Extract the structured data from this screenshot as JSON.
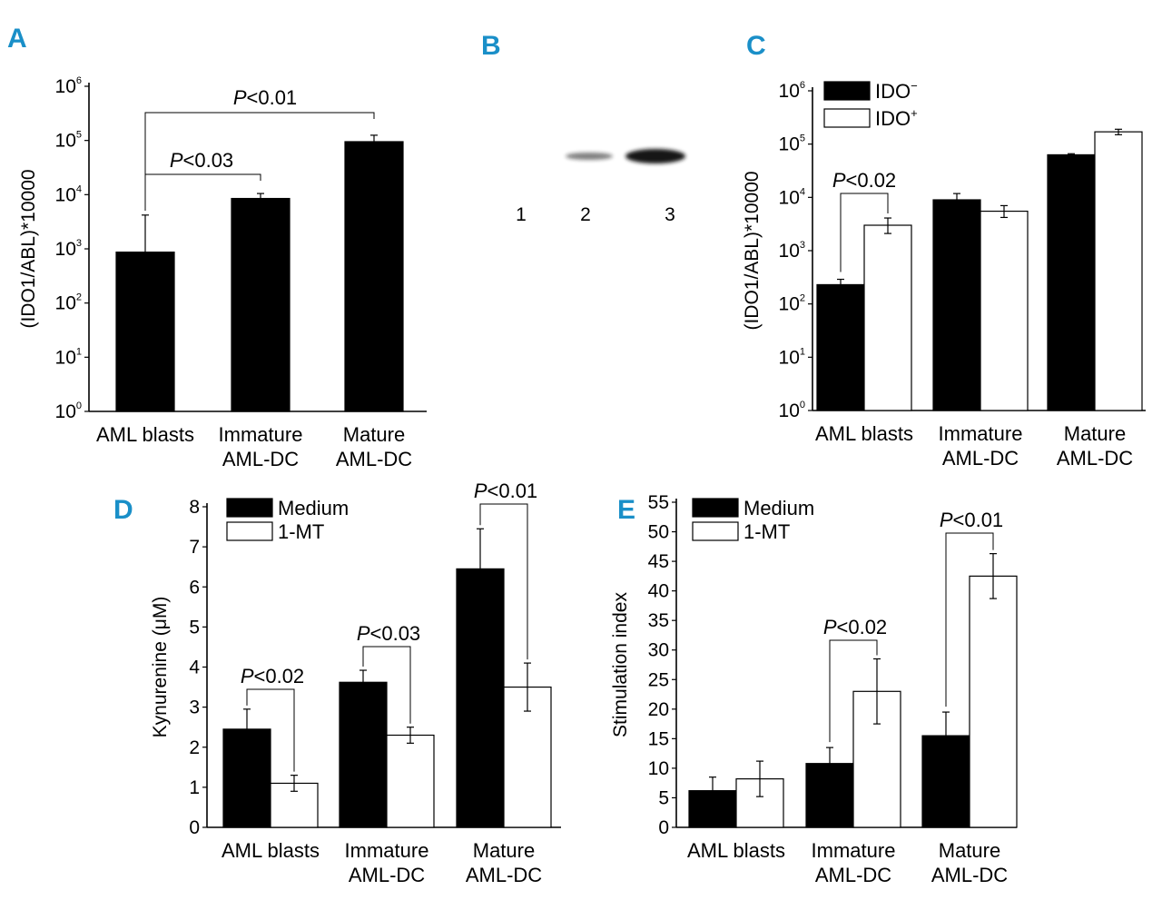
{
  "colors": {
    "panel_label": "#1a8fc8",
    "bar_filled": "#000000",
    "bar_open": "#ffffff",
    "blot_band": "#151515"
  },
  "panel_labels": {
    "a": "A",
    "b": "B",
    "c": "C",
    "d": "D",
    "e": "E"
  },
  "chart_data": [
    {
      "panel": "A",
      "type": "bar",
      "scale": "log",
      "ylabel": "(IDO1/ABL)*10000",
      "ylim": [
        1,
        1000000
      ],
      "ytick_base": "10",
      "yticks_exponents": [
        "0",
        "1",
        "2",
        "3",
        "4",
        "5",
        "6"
      ],
      "categories": [
        [
          "AML blasts"
        ],
        [
          "Immature",
          "AML-DC"
        ],
        [
          "Mature",
          "AML-DC"
        ]
      ],
      "series": [
        {
          "name": "",
          "style": "filled",
          "values": [
            870,
            8500,
            95000
          ],
          "errors_high": [
            4200,
            10500,
            125000
          ]
        }
      ],
      "annotations": [
        {
          "text": "P<0.03",
          "p": "P",
          "rest": "<0.03",
          "from": 0,
          "to": 1
        },
        {
          "text": "P<0.01",
          "p": "P",
          "rest": "<0.01",
          "from": 0,
          "to": 2
        }
      ]
    },
    {
      "panel": "B",
      "type": "blot",
      "lanes": [
        "1",
        "2",
        "3"
      ],
      "band_intensity": [
        0.0,
        0.55,
        1.0
      ]
    },
    {
      "panel": "C",
      "type": "bar",
      "scale": "log",
      "ylabel": "(IDO1/ABL)*10000",
      "ylim": [
        1,
        1000000
      ],
      "ytick_base": "10",
      "yticks_exponents": [
        "0",
        "1",
        "2",
        "3",
        "4",
        "5",
        "6"
      ],
      "categories": [
        [
          "AML blasts"
        ],
        [
          "Immature",
          "AML-DC"
        ],
        [
          "Mature",
          "AML-DC"
        ]
      ],
      "series": [
        {
          "name": "IDO",
          "sup": "−",
          "style": "filled",
          "values": [
            230,
            9000,
            63000
          ],
          "errors_low": [
            190,
            7600,
            60000
          ],
          "errors_high": [
            290,
            11800,
            66000
          ]
        },
        {
          "name": "IDO",
          "sup": "+",
          "style": "open",
          "values": [
            3000,
            5500,
            170000
          ],
          "errors_low": [
            2100,
            4200,
            150000
          ],
          "errors_high": [
            4100,
            7000,
            190000
          ]
        }
      ],
      "annotations": [
        {
          "text": "P<0.02",
          "p": "P",
          "rest": "<0.02",
          "category": 0
        }
      ]
    },
    {
      "panel": "D",
      "type": "bar",
      "scale": "linear",
      "ylabel": "Kynurenine (μM)",
      "ylim": [
        0,
        8
      ],
      "yticks": [
        "0",
        "1",
        "2",
        "3",
        "4",
        "5",
        "6",
        "7",
        "8"
      ],
      "categories": [
        [
          "AML blasts"
        ],
        [
          "Immature",
          "AML-DC"
        ],
        [
          "Mature",
          "AML-DC"
        ]
      ],
      "series": [
        {
          "name": "Medium",
          "style": "filled",
          "values": [
            2.45,
            3.62,
            6.45
          ],
          "errors": [
            0.5,
            0.3,
            1.0
          ]
        },
        {
          "name": "1-MT",
          "style": "open",
          "values": [
            1.1,
            2.3,
            3.5
          ],
          "errors": [
            0.2,
            0.2,
            0.6
          ]
        }
      ],
      "annotations": [
        {
          "text": "P<0.02",
          "p": "P",
          "rest": "<0.02",
          "category": 0
        },
        {
          "text": "P<0.03",
          "p": "P",
          "rest": "<0.03",
          "category": 1
        },
        {
          "text": "P<0.01",
          "p": "P",
          "rest": "<0.01",
          "category": 2
        }
      ]
    },
    {
      "panel": "E",
      "type": "bar",
      "scale": "linear",
      "ylabel": "Stimulation index",
      "ylim": [
        0,
        55
      ],
      "yticks": [
        "0",
        "5",
        "10",
        "15",
        "20",
        "25",
        "30",
        "35",
        "40",
        "45",
        "50",
        "55"
      ],
      "categories": [
        [
          "AML blasts"
        ],
        [
          "Immature",
          "AML-DC"
        ],
        [
          "Mature",
          "AML-DC"
        ]
      ],
      "series": [
        {
          "name": "Medium",
          "style": "filled",
          "values": [
            6.2,
            10.8,
            15.5
          ],
          "errors": [
            2.3,
            2.7,
            4.0
          ]
        },
        {
          "name": "1-MT",
          "style": "open",
          "values": [
            8.2,
            23.0,
            42.5
          ],
          "errors": [
            3.0,
            5.5,
            3.8
          ]
        }
      ],
      "annotations": [
        {
          "text": "P<0.02",
          "p": "P",
          "rest": "<0.02",
          "category": 1
        },
        {
          "text": "P<0.01",
          "p": "P",
          "rest": "<0.01",
          "category": 2
        }
      ]
    }
  ]
}
